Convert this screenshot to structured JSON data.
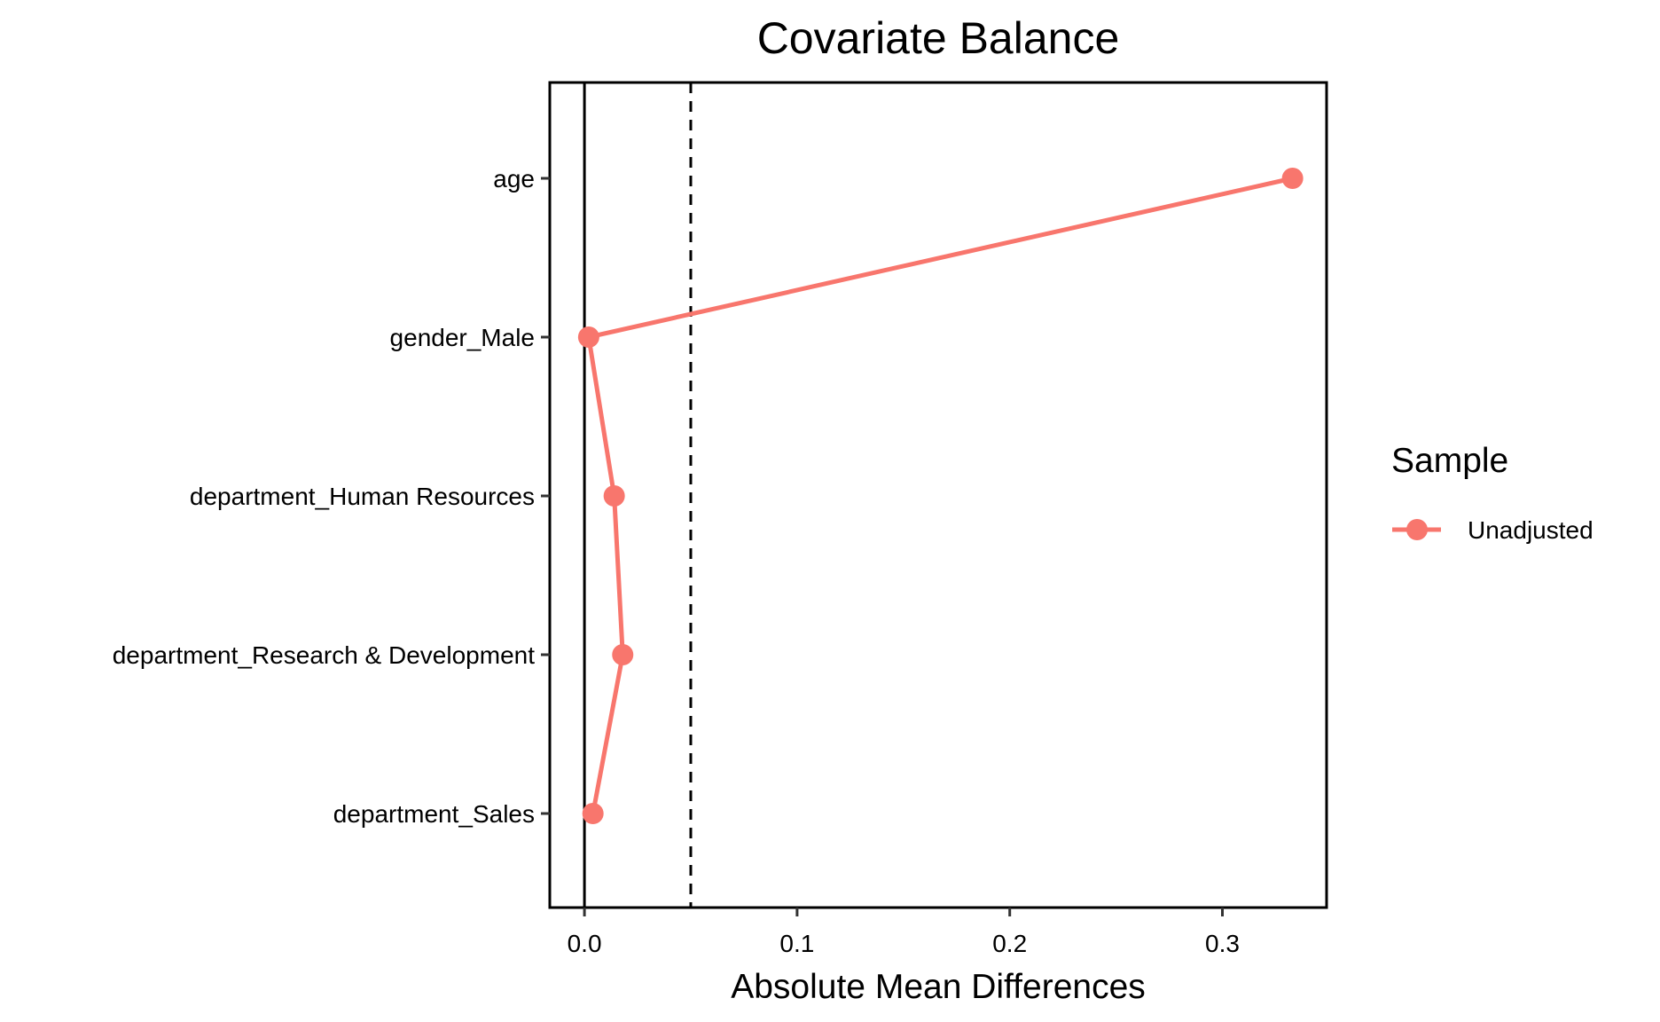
{
  "chart_data": {
    "type": "line",
    "title": "Covariate Balance",
    "xlabel": "Absolute Mean Differences",
    "ylabel": "",
    "xlim": [
      -0.0163,
      0.349
    ],
    "x_ticks": [
      0.0,
      0.1,
      0.2,
      0.3
    ],
    "x_tick_labels": [
      "0.0",
      "0.1",
      "0.2",
      "0.3"
    ],
    "categories": [
      "age",
      "gender_Male",
      "department_Human Resources",
      "department_Research & Development",
      "department_Sales"
    ],
    "series": [
      {
        "name": "Unadjusted",
        "color": "#F8766D",
        "values": [
          0.333,
          0.002,
          0.014,
          0.018,
          0.004
        ]
      }
    ],
    "reference_lines": {
      "solid_x": 0.0,
      "dashed_x": 0.05
    },
    "legend": {
      "title": "Sample",
      "position": "right"
    },
    "grid": false
  }
}
